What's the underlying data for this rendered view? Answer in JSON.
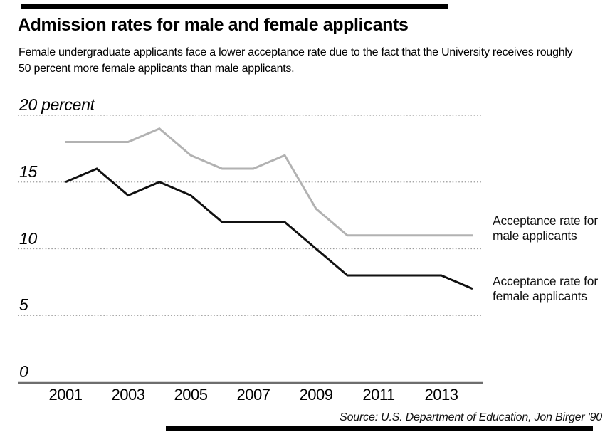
{
  "header": {
    "title": "Admission rates for male and female applicants",
    "subtitle_line1": "Female undergraduate applicants face a lower acceptance rate due to the fact that the University receives roughly",
    "subtitle_line2": "50 percent more female applicants than male applicants."
  },
  "chart_data": {
    "type": "line",
    "x": [
      2001,
      2002,
      2003,
      2004,
      2005,
      2006,
      2007,
      2008,
      2009,
      2010,
      2011,
      2012,
      2013,
      2014
    ],
    "series": [
      {
        "name": "Acceptance rate for male applicants",
        "color": "#b2b2b2",
        "values": [
          18,
          18,
          18,
          19,
          17,
          16,
          16,
          17,
          13,
          11,
          11,
          11,
          11,
          11
        ]
      },
      {
        "name": "Acceptance rate for female applicants",
        "color": "#111111",
        "values": [
          15,
          16,
          14,
          15,
          14,
          12,
          12,
          12,
          10,
          8,
          8,
          8,
          8,
          7
        ]
      }
    ],
    "y_ticks": [
      {
        "value": 20,
        "label": "20 percent"
      },
      {
        "value": 15,
        "label": "15"
      },
      {
        "value": 10,
        "label": "10"
      },
      {
        "value": 5,
        "label": "5"
      },
      {
        "value": 0,
        "label": "0"
      }
    ],
    "x_tick_labels": [
      2001,
      2003,
      2005,
      2007,
      2009,
      2011,
      2013
    ],
    "ylim": [
      0,
      21
    ],
    "grid": "horizontal-dotted",
    "legend_position": "right-annotations",
    "title": "Admission rates for male and female applicants",
    "xlabel": "",
    "ylabel": "percent"
  },
  "annotations": {
    "male": {
      "line1": "Acceptance rate for",
      "line2": "male applicants"
    },
    "female": {
      "line1": "Acceptance rate for",
      "line2": "female applicants"
    }
  },
  "source": "Source: U.S. Department of Education, Jon Birger '90",
  "colors": {
    "male_line": "#b2b2b2",
    "female_line": "#111111",
    "dotted_gridline": "#9b9b9b",
    "zero_axis_line": "#6e6e6e",
    "rule_bar": "#000000"
  }
}
